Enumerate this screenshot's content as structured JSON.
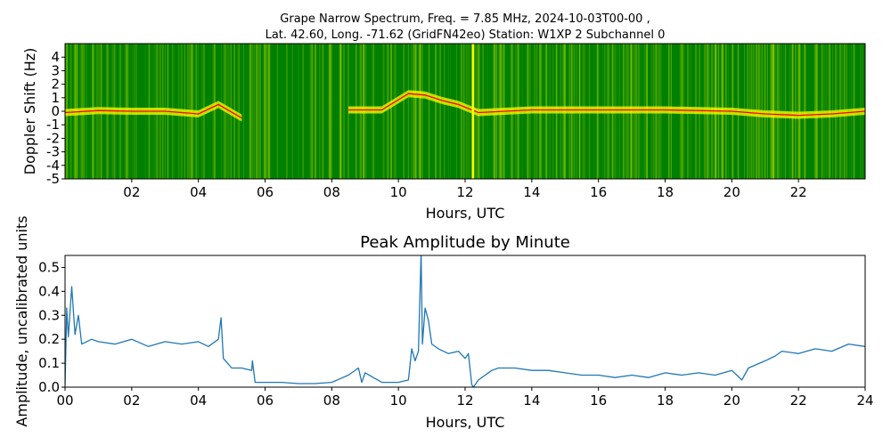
{
  "chart_data": [
    {
      "type": "heatmap",
      "title_lines": [
        "Grape Narrow Spectrum, Freq. = 7.85 MHz, 2024-10-03T00-00 ,",
        "Lat.  42.60, Long. -71.62 (GridFN42eo) Station: W1XP 2 Subchannel 0"
      ],
      "xlabel": "Hours, UTC",
      "ylabel": "Doppler Shift (Hz)",
      "x_ticks": [
        "02",
        "04",
        "06",
        "08",
        "10",
        "12",
        "14",
        "16",
        "18",
        "20",
        "22"
      ],
      "y_ticks": [
        "4",
        "3",
        "2",
        "1",
        "0",
        "-1",
        "-2",
        "-3",
        "-4",
        "-5"
      ],
      "xlim": [
        0,
        24
      ],
      "ylim": [
        -5,
        5
      ],
      "colormap": [
        "#008000",
        "#ffff00",
        "#ff0000"
      ],
      "doppler_trace": {
        "x": [
          0,
          1,
          2,
          3,
          4,
          4.6,
          5.3,
          6,
          7,
          8.5,
          9.5,
          10.3,
          10.8,
          11.3,
          11.8,
          12.1,
          12.4,
          14,
          16,
          18,
          20,
          21,
          22,
          23,
          24
        ],
        "y": [
          -0.1,
          0.05,
          0.0,
          0.0,
          -0.2,
          0.5,
          -0.5,
          null,
          null,
          0.1,
          0.1,
          1.3,
          1.2,
          0.8,
          0.5,
          0.2,
          -0.1,
          0.1,
          0.1,
          0.1,
          0.0,
          -0.2,
          -0.3,
          -0.2,
          0.0
        ]
      }
    },
    {
      "type": "line",
      "title": "Peak Amplitude by Minute",
      "xlabel": "Hours, UTC",
      "ylabel": "Amplitude, uncalibrated units",
      "x_ticks": [
        "00",
        "02",
        "04",
        "06",
        "08",
        "10",
        "12",
        "14",
        "16",
        "18",
        "20",
        "22",
        "24"
      ],
      "y_ticks": [
        "0.0",
        "0.1",
        "0.2",
        "0.3",
        "0.4",
        "0.5"
      ],
      "xlim": [
        0,
        24
      ],
      "ylim": [
        0,
        0.55
      ],
      "color": "#1f77b4",
      "series": [
        {
          "x": [
            0,
            0.05,
            0.1,
            0.2,
            0.3,
            0.4,
            0.5,
            0.8,
            1.0,
            1.5,
            2.0,
            2.5,
            3.0,
            3.5,
            4.0,
            4.3,
            4.6,
            4.68,
            4.75,
            5.0,
            5.3,
            5.6,
            5.62,
            5.7,
            6.0,
            6.5,
            7.0,
            7.5,
            8.0,
            8.5,
            8.8,
            8.9,
            9.0,
            9.5,
            10.0,
            10.3,
            10.4,
            10.5,
            10.6,
            10.68,
            10.72,
            10.8,
            10.9,
            11.0,
            11.2,
            11.5,
            11.8,
            12.0,
            12.1,
            12.2,
            12.25,
            12.4,
            12.8,
            13.0,
            13.5,
            14.0,
            14.5,
            15.0,
            15.5,
            16.0,
            16.5,
            17.0,
            17.5,
            18.0,
            18.5,
            19.0,
            19.5,
            20.0,
            20.3,
            20.5,
            21.0,
            21.3,
            21.5,
            22.0,
            22.5,
            23.0,
            23.5,
            24.0
          ],
          "y": [
            0.01,
            0.33,
            0.21,
            0.42,
            0.22,
            0.3,
            0.18,
            0.2,
            0.19,
            0.18,
            0.2,
            0.17,
            0.19,
            0.18,
            0.19,
            0.17,
            0.2,
            0.29,
            0.12,
            0.08,
            0.08,
            0.07,
            0.11,
            0.02,
            0.02,
            0.02,
            0.015,
            0.015,
            0.02,
            0.05,
            0.08,
            0.02,
            0.06,
            0.02,
            0.02,
            0.03,
            0.16,
            0.11,
            0.15,
            0.56,
            0.18,
            0.33,
            0.28,
            0.18,
            0.16,
            0.14,
            0.15,
            0.12,
            0.14,
            0.01,
            0.0,
            0.03,
            0.07,
            0.08,
            0.08,
            0.07,
            0.07,
            0.06,
            0.05,
            0.05,
            0.04,
            0.05,
            0.04,
            0.06,
            0.05,
            0.06,
            0.05,
            0.07,
            0.03,
            0.08,
            0.11,
            0.13,
            0.15,
            0.14,
            0.16,
            0.15,
            0.18,
            0.17
          ]
        }
      ]
    }
  ]
}
